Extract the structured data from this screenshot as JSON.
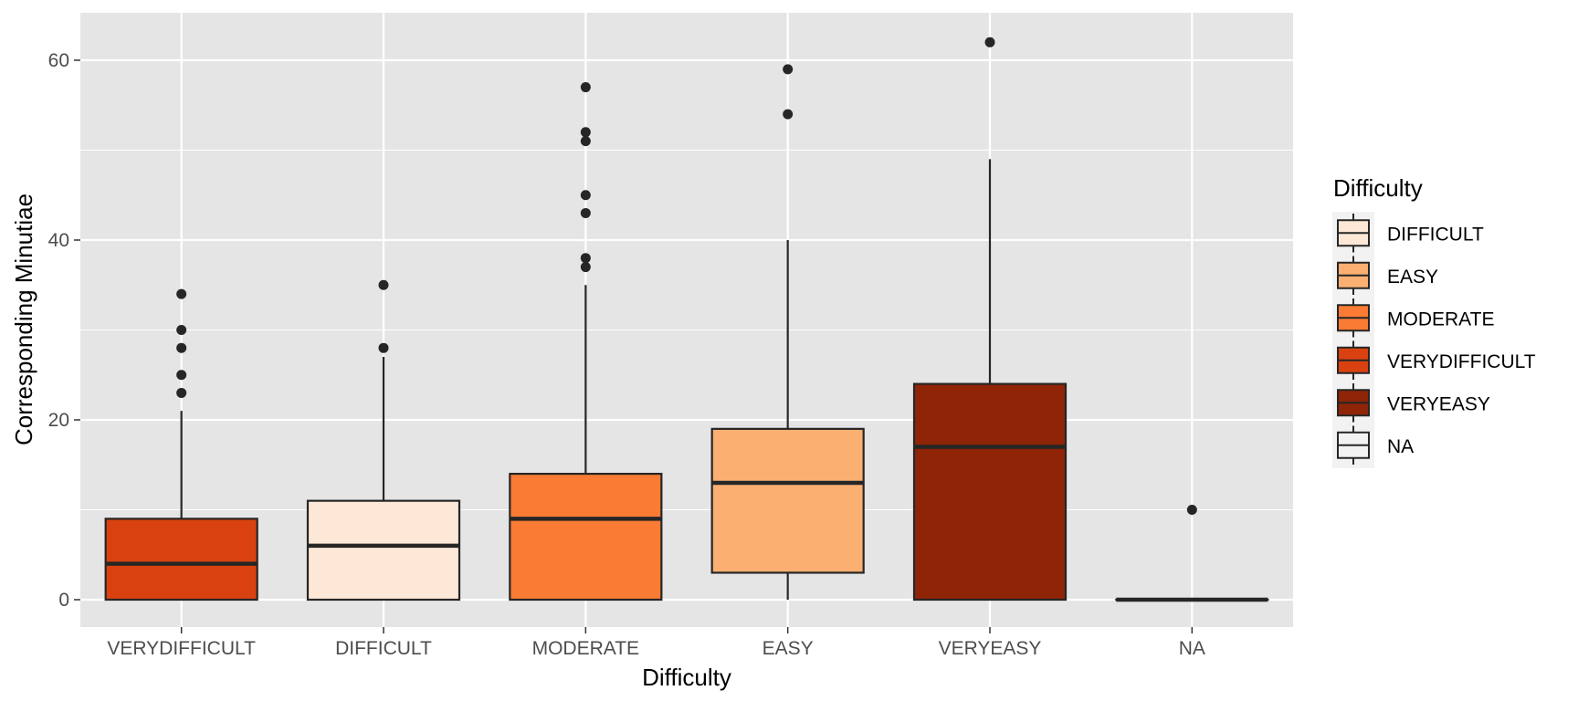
{
  "chart_data": {
    "type": "box",
    "title": "",
    "xlabel": "Difficulty",
    "ylabel": "Corresponding Minutiae",
    "ylim": [
      -3,
      65
    ],
    "yticks": [
      0,
      20,
      40,
      60
    ],
    "grid": true,
    "legend_position": "right",
    "legend_title": "Difficulty",
    "categories": [
      "VERYDIFFICULT",
      "DIFFICULT",
      "MODERATE",
      "EASY",
      "VERYEASY",
      "NA"
    ],
    "boxes": [
      {
        "category": "VERYDIFFICULT",
        "fill": "#D94210",
        "whisker_low": 0,
        "q1": 0,
        "median": 4,
        "q3": 9,
        "whisker_high": 21,
        "outliers": [
          23,
          25,
          28,
          30,
          34
        ]
      },
      {
        "category": "DIFFICULT",
        "fill": "#FDE8D7",
        "whisker_low": 0,
        "q1": 0,
        "median": 6,
        "q3": 11,
        "whisker_high": 27,
        "outliers": [
          28,
          35
        ]
      },
      {
        "category": "MODERATE",
        "fill": "#FA7B34",
        "whisker_low": 0,
        "q1": 0,
        "median": 9,
        "q3": 14,
        "whisker_high": 35,
        "outliers": [
          37,
          38,
          43,
          45,
          51,
          52,
          57
        ]
      },
      {
        "category": "EASY",
        "fill": "#FBB072",
        "whisker_low": 0,
        "q1": 3,
        "median": 13,
        "q3": 19,
        "whisker_high": 40,
        "outliers": [
          54,
          59
        ]
      },
      {
        "category": "VERYEASY",
        "fill": "#8F2406",
        "whisker_low": 0,
        "q1": 0,
        "median": 17,
        "q3": 24,
        "whisker_high": 49,
        "outliers": [
          62
        ]
      },
      {
        "category": "NA",
        "fill": "#F2F2F2",
        "whisker_low": 0,
        "q1": 0,
        "median": 0,
        "q3": 0,
        "whisker_high": 0,
        "outliers": [
          10
        ]
      }
    ],
    "legend": [
      {
        "label": "DIFFICULT",
        "fill": "#FDE8D7"
      },
      {
        "label": "EASY",
        "fill": "#FBB072"
      },
      {
        "label": "MODERATE",
        "fill": "#FA7B34"
      },
      {
        "label": "VERYDIFFICULT",
        "fill": "#D94210"
      },
      {
        "label": "VERYEASY",
        "fill": "#8F2406"
      },
      {
        "label": "NA",
        "fill": "#F2F2F2"
      }
    ],
    "colors": {
      "panel_background": "#E5E5E5",
      "grid": "#FFFFFF",
      "stroke": "#262626"
    }
  }
}
